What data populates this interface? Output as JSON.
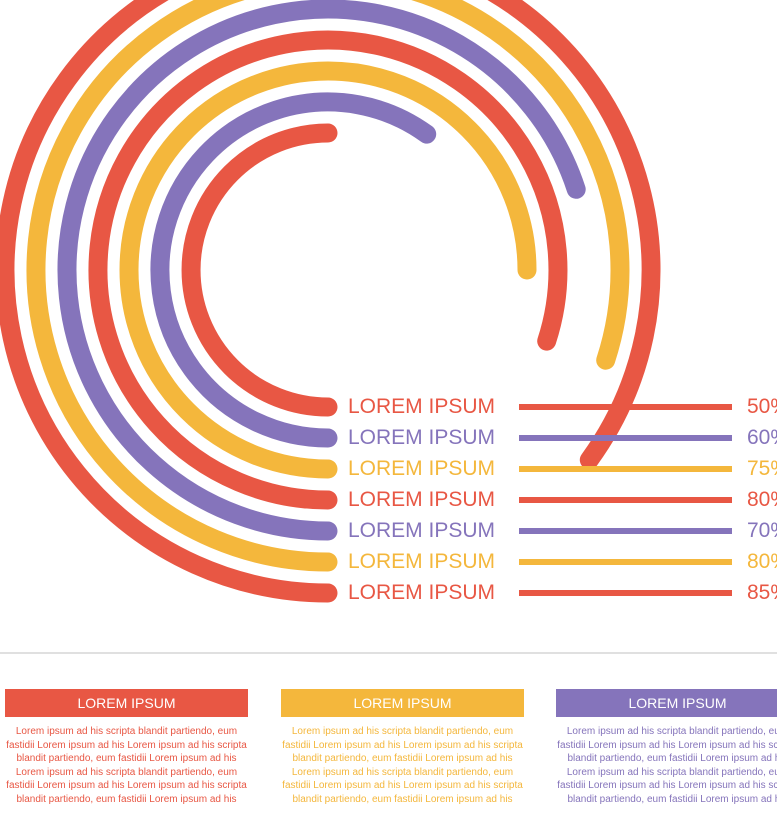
{
  "colors": {
    "red": "#e85744",
    "yellow": "#f4b73c",
    "purple": "#8574bb"
  },
  "chart_data": {
    "type": "radial-bar",
    "title": "",
    "unit": "%",
    "series": [
      {
        "label": "LOREM IPSUM",
        "value": 85,
        "value_label": "85%",
        "color": "#e85744"
      },
      {
        "label": "LOREM IPSUM",
        "value": 80,
        "value_label": "80%",
        "color": "#f4b73c"
      },
      {
        "label": "LOREM IPSUM",
        "value": 70,
        "value_label": "70%",
        "color": "#8574bb"
      },
      {
        "label": "LOREM IPSUM",
        "value": 80,
        "value_label": "80%",
        "color": "#e85744"
      },
      {
        "label": "LOREM IPSUM",
        "value": 75,
        "value_label": "75%",
        "color": "#f4b73c"
      },
      {
        "label": "LOREM IPSUM",
        "value": 60,
        "value_label": "60%",
        "color": "#8574bb"
      },
      {
        "label": "LOREM IPSUM",
        "value": 50,
        "value_label": "50%",
        "color": "#e85744"
      }
    ]
  },
  "panels": [
    {
      "title": "LOREM IPSUM",
      "color": "#e85744",
      "lines": [
        "Lorem ipsum ad his scripta blandit partiendo, eum",
        "fastidii Lorem ipsum ad his Lorem ipsum ad his scripta",
        "blandit partiendo, eum fastidii Lorem ipsum ad his",
        "Lorem ipsum ad his scripta blandit partiendo, eum",
        "fastidii Lorem ipsum ad his Lorem ipsum ad his scripta",
        "blandit partiendo, eum fastidii Lorem ipsum ad his"
      ]
    },
    {
      "title": "LOREM IPSUM",
      "color": "#f4b73c",
      "lines": [
        "Lorem ipsum ad his scripta blandit partiendo, eum",
        "fastidii Lorem ipsum ad his Lorem ipsum ad his scripta",
        "blandit partiendo, eum fastidii Lorem ipsum ad his",
        "Lorem ipsum ad his scripta blandit partiendo, eum",
        "fastidii Lorem ipsum ad his Lorem ipsum ad his scripta",
        "blandit partiendo, eum fastidii Lorem ipsum ad his"
      ]
    },
    {
      "title": "LOREM IPSUM",
      "color": "#8574bb",
      "lines": [
        "Lorem ipsum ad his scripta blandit partiendo, eum",
        "fastidii Lorem ipsum ad his Lorem ipsum ad his scripta",
        "blandit partiendo, eum fastidii Lorem ipsum ad his",
        "Lorem ipsum ad his scripta blandit partiendo, eum",
        "fastidii Lorem ipsum ad his Lorem ipsum ad his scripta",
        "blandit partiendo, eum fastidii Lorem ipsum ad his"
      ]
    }
  ]
}
